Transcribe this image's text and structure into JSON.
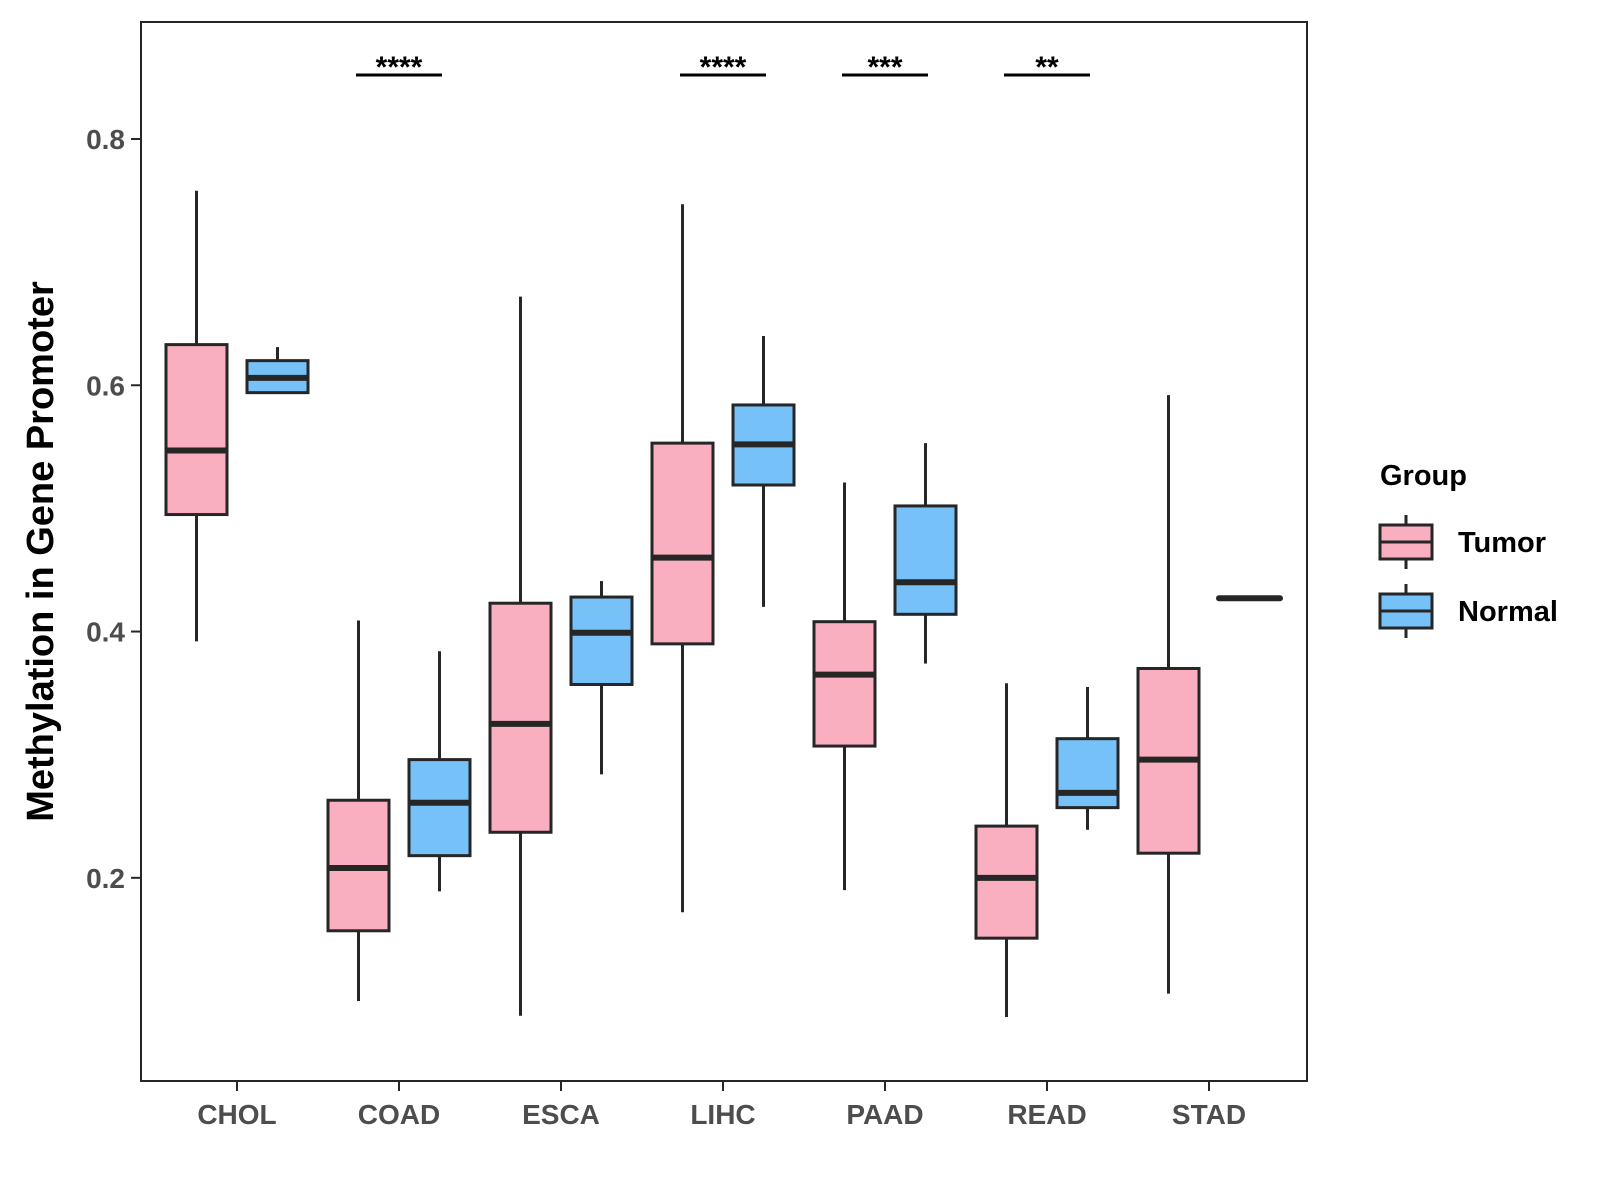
{
  "chart_data": {
    "type": "boxplot",
    "title": "",
    "xlabel": "",
    "ylabel": "Methylation in Gene Promoter",
    "ylim": [
      0.035,
      0.895
    ],
    "yticks": [
      0.2,
      0.4,
      0.6,
      0.8
    ],
    "ytick_labels": [
      "0.2",
      "0.4",
      "0.6",
      "0.8"
    ],
    "grid": false,
    "categories": [
      "CHOL",
      "COAD",
      "ESCA",
      "LIHC",
      "PAAD",
      "READ",
      "STAD"
    ],
    "legend": {
      "title": "Group",
      "position": "right",
      "entries": [
        {
          "name": "Tumor",
          "color": "#F9AFC0"
        },
        {
          "name": "Normal",
          "color": "#75C1F8"
        }
      ]
    },
    "series": [
      {
        "name": "Tumor",
        "color": "#F9AFC0",
        "boxes": [
          {
            "category": "CHOL",
            "min": 0.392,
            "q1": 0.495,
            "median": 0.547,
            "q3": 0.633,
            "max": 0.758
          },
          {
            "category": "COAD",
            "min": 0.1,
            "q1": 0.157,
            "median": 0.208,
            "q3": 0.263,
            "max": 0.409
          },
          {
            "category": "ESCA",
            "min": 0.088,
            "q1": 0.237,
            "median": 0.325,
            "q3": 0.423,
            "max": 0.672
          },
          {
            "category": "LIHC",
            "min": 0.172,
            "q1": 0.39,
            "median": 0.46,
            "q3": 0.553,
            "max": 0.747
          },
          {
            "category": "PAAD",
            "min": 0.19,
            "q1": 0.307,
            "median": 0.365,
            "q3": 0.408,
            "max": 0.521
          },
          {
            "category": "READ",
            "min": 0.087,
            "q1": 0.151,
            "median": 0.2,
            "q3": 0.242,
            "max": 0.358
          },
          {
            "category": "STAD",
            "min": 0.106,
            "q1": 0.22,
            "median": 0.296,
            "q3": 0.37,
            "max": 0.592
          }
        ]
      },
      {
        "name": "Normal",
        "color": "#75C1F8",
        "boxes": [
          {
            "category": "CHOL",
            "min": 0.594,
            "q1": 0.594,
            "median": 0.606,
            "q3": 0.62,
            "max": 0.631
          },
          {
            "category": "COAD",
            "min": 0.189,
            "q1": 0.218,
            "median": 0.261,
            "q3": 0.296,
            "max": 0.384
          },
          {
            "category": "ESCA",
            "min": 0.284,
            "q1": 0.357,
            "median": 0.399,
            "q3": 0.428,
            "max": 0.441
          },
          {
            "category": "LIHC",
            "min": 0.42,
            "q1": 0.519,
            "median": 0.552,
            "q3": 0.584,
            "max": 0.64
          },
          {
            "category": "PAAD",
            "min": 0.374,
            "q1": 0.414,
            "median": 0.44,
            "q3": 0.502,
            "max": 0.553
          },
          {
            "category": "READ",
            "min": 0.239,
            "q1": 0.257,
            "median": 0.269,
            "q3": 0.313,
            "max": 0.355
          },
          {
            "category": "STAD",
            "min": 0.427,
            "q1": 0.427,
            "median": 0.427,
            "q3": 0.427,
            "max": 0.427
          }
        ]
      }
    ],
    "annotations": [
      {
        "category": "COAD",
        "label": "****"
      },
      {
        "category": "LIHC",
        "label": "****"
      },
      {
        "category": "PAAD",
        "label": "***"
      },
      {
        "category": "READ",
        "label": "**"
      }
    ]
  }
}
